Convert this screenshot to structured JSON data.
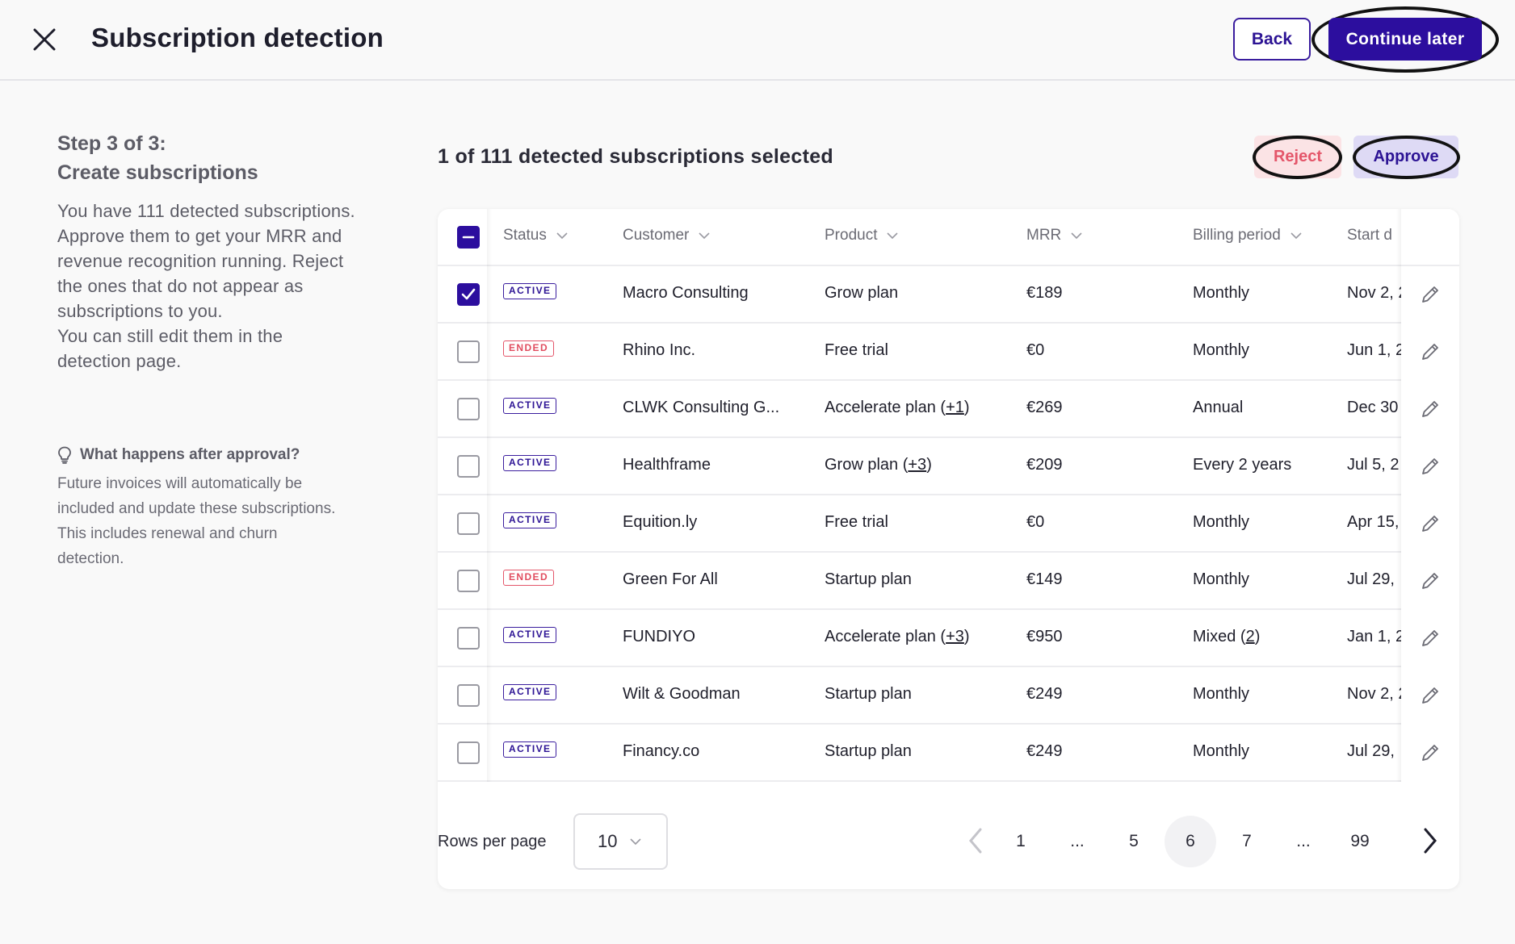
{
  "header": {
    "title": "Subscription detection",
    "back_label": "Back",
    "continue_label": "Continue later"
  },
  "left_panel": {
    "step_line1": "Step 3 of 3:",
    "step_line2": "Create subscriptions",
    "description": "You have 111 detected subscriptions. Approve them to get your MRR and revenue recognition running. Reject the ones that do not appear as subscriptions to you.",
    "description2": "You can still edit them in the detection page.",
    "tip_heading": "What happens after approval?",
    "tip_body": "Future invoices will automatically be included and update these subscriptions. This includes renewal and churn detection."
  },
  "main": {
    "selected_text": "1 of 111 detected subscriptions selected",
    "reject_label": "Reject",
    "approve_label": "Approve"
  },
  "table": {
    "columns": [
      "Status",
      "Customer",
      "Product",
      "MRR",
      "Billing period",
      "Start d"
    ],
    "rows": [
      {
        "checked": true,
        "status": "ACTIVE",
        "customer": "Macro Consulting",
        "product": "Grow plan",
        "product_extra": "",
        "mrr": "€189",
        "billing": "Monthly",
        "billing_extra": "",
        "start": "Nov 2, 2"
      },
      {
        "checked": false,
        "status": "ENDED",
        "customer": "Rhino Inc.",
        "product": "Free trial",
        "product_extra": "",
        "mrr": "€0",
        "billing": "Monthly",
        "billing_extra": "",
        "start": "Jun 1, 2"
      },
      {
        "checked": false,
        "status": "ACTIVE",
        "customer": "CLWK Consulting G...",
        "product": "Accelerate plan",
        "product_extra": "+1",
        "mrr": "€269",
        "billing": "Annual",
        "billing_extra": "",
        "start": "Dec 30"
      },
      {
        "checked": false,
        "status": "ACTIVE",
        "customer": "Healthframe",
        "product": "Grow plan",
        "product_extra": "+3",
        "mrr": "€209",
        "billing": "Every 2 years",
        "billing_extra": "",
        "start": "Jul 5, 2"
      },
      {
        "checked": false,
        "status": "ACTIVE",
        "customer": "Equition.ly",
        "product": "Free trial",
        "product_extra": "",
        "mrr": "€0",
        "billing": "Monthly",
        "billing_extra": "",
        "start": "Apr 15,"
      },
      {
        "checked": false,
        "status": "ENDED",
        "customer": "Green For All",
        "product": "Startup plan",
        "product_extra": "",
        "mrr": "€149",
        "billing": "Monthly",
        "billing_extra": "",
        "start": "Jul 29,"
      },
      {
        "checked": false,
        "status": "ACTIVE",
        "customer": "FUNDIYO",
        "product": "Accelerate plan",
        "product_extra": "+3",
        "mrr": "€950",
        "billing": "Mixed",
        "billing_extra": "2",
        "start": "Jan 1, 2"
      },
      {
        "checked": false,
        "status": "ACTIVE",
        "customer": "Wilt & Goodman",
        "product": "Startup plan",
        "product_extra": "",
        "mrr": "€249",
        "billing": "Monthly",
        "billing_extra": "",
        "start": "Nov 2, 2"
      },
      {
        "checked": false,
        "status": "ACTIVE",
        "customer": "Financy.co",
        "product": "Startup plan",
        "product_extra": "",
        "mrr": "€249",
        "billing": "Monthly",
        "billing_extra": "",
        "start": "Jul 29,"
      }
    ]
  },
  "pagination": {
    "rows_label": "Rows per page",
    "rows_value": "10",
    "pages": [
      "1",
      "...",
      "5",
      "6",
      "7",
      "...",
      "99"
    ],
    "current_page": "6"
  },
  "colors": {
    "primary": "#2c0e9e",
    "reject": "#e4566a",
    "reject_bg": "#fbe3e5",
    "approve_bg": "#dedaf5"
  },
  "icons": {
    "close": "close-icon",
    "chevron": "chevron-down-icon",
    "lightbulb": "lightbulb-icon",
    "edit": "pencil-icon",
    "prev": "chevron-left-icon",
    "next": "chevron-right-icon"
  }
}
